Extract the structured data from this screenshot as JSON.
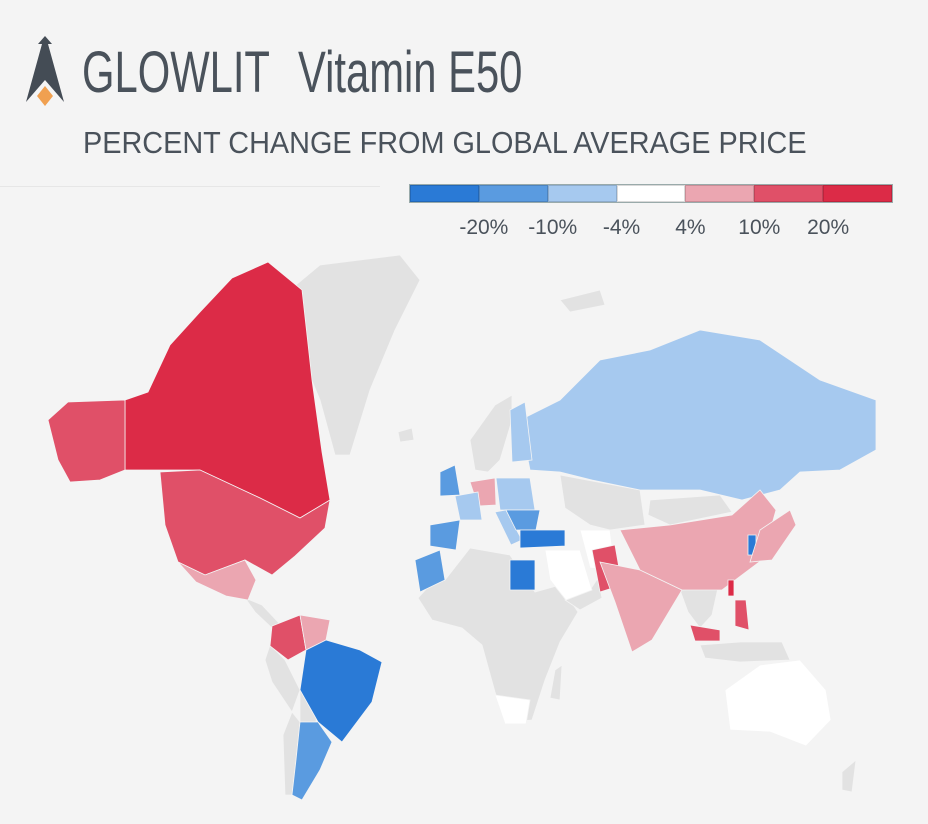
{
  "header": {
    "brand": "GLOWLIT",
    "product": "Vitamin E50",
    "subtitle": "PERCENT CHANGE FROM GLOBAL AVERAGE PRICE",
    "logo_accent_color": "#f0a050",
    "logo_color": "#444c55"
  },
  "legend": {
    "colors": [
      "#2a7ad6",
      "#5a9be0",
      "#a6c9ef",
      "#ffffff",
      "#eba6b1",
      "#e05068",
      "#dc2b47"
    ],
    "ticks": [
      "-20%",
      "-10%",
      "-4%",
      "4%",
      "10%",
      "20%"
    ]
  },
  "chart_data": {
    "type": "choropleth",
    "measure": "percent change from global average price",
    "no_data_color": "#e2e2e2",
    "bins": [
      "< -20%",
      "-20% to -10%",
      "-10% to -4%",
      "-4% to 4%",
      "4% to 10%",
      "10% to 20%",
      "> 20%"
    ],
    "regions": [
      {
        "id": "canada",
        "bin": 6
      },
      {
        "id": "alaska",
        "bin": 5
      },
      {
        "id": "usa",
        "bin": 5
      },
      {
        "id": "mexico",
        "bin": 4
      },
      {
        "id": "colombia",
        "bin": 5
      },
      {
        "id": "venezuela",
        "bin": 4
      },
      {
        "id": "brazil",
        "bin": 0
      },
      {
        "id": "argentina",
        "bin": 1
      },
      {
        "id": "russia",
        "bin": 2
      },
      {
        "id": "finland",
        "bin": 2
      },
      {
        "id": "united-kingdom",
        "bin": 1
      },
      {
        "id": "germany",
        "bin": 4
      },
      {
        "id": "spain",
        "bin": 1
      },
      {
        "id": "france",
        "bin": 2
      },
      {
        "id": "poland",
        "bin": 2
      },
      {
        "id": "italy",
        "bin": 2
      },
      {
        "id": "balkans",
        "bin": 1
      },
      {
        "id": "morocco",
        "bin": 1
      },
      {
        "id": "egypt",
        "bin": 0
      },
      {
        "id": "turkey",
        "bin": 0
      },
      {
        "id": "saudi-arabia",
        "bin": 3
      },
      {
        "id": "iran",
        "bin": 3
      },
      {
        "id": "pakistan",
        "bin": 5
      },
      {
        "id": "india",
        "bin": 4
      },
      {
        "id": "china",
        "bin": 4
      },
      {
        "id": "south-korea",
        "bin": 0
      },
      {
        "id": "japan",
        "bin": 4
      },
      {
        "id": "taiwan",
        "bin": 6
      },
      {
        "id": "philippines",
        "bin": 5
      },
      {
        "id": "malaysia",
        "bin": 5
      },
      {
        "id": "australia",
        "bin": 3
      },
      {
        "id": "south-africa",
        "bin": 3
      }
    ]
  }
}
